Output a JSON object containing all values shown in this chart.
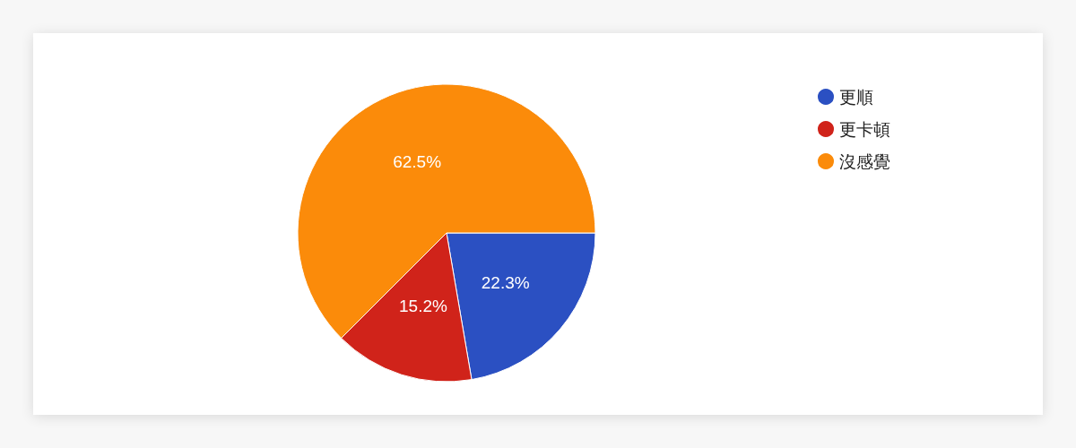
{
  "chart_data": {
    "type": "pie",
    "categories": [
      "更順",
      "更卡頓",
      "沒感覺"
    ],
    "values": [
      22.3,
      15.2,
      62.5
    ],
    "colors": [
      "#2b50c2",
      "#d0231a",
      "#fb8b0a"
    ],
    "value_labels": [
      "22.3%",
      "15.2%",
      "62.5%"
    ],
    "legend": "top right"
  }
}
